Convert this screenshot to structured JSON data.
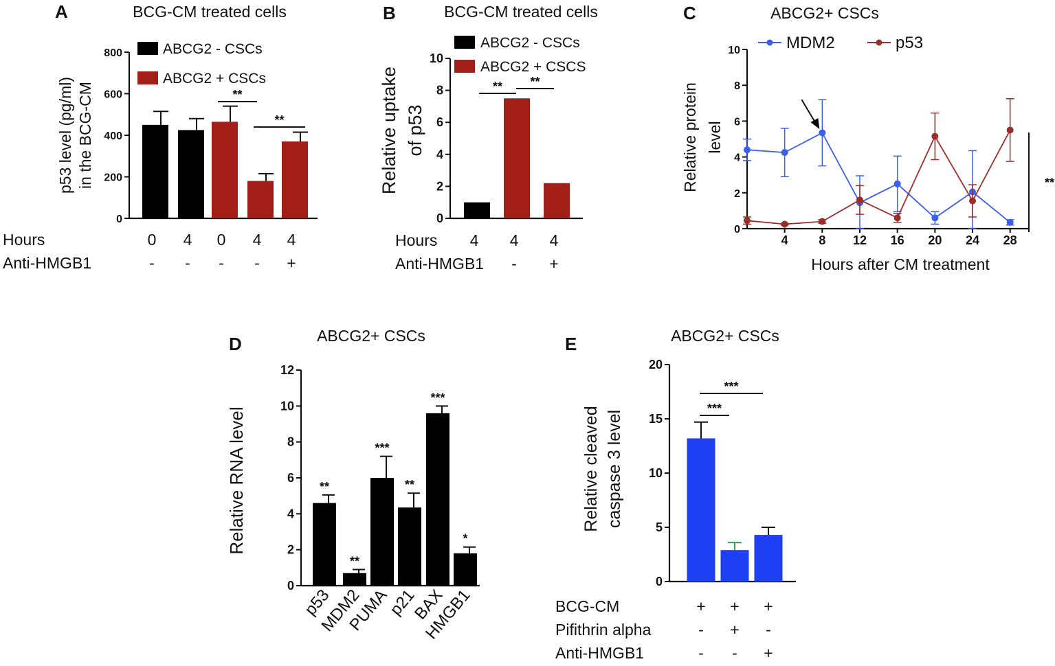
{
  "colors": {
    "black": "#000000",
    "red": "#a31e16",
    "blue": "#1e3ff2",
    "blueLine": "#3a5ef0",
    "green": "#2ea44f",
    "redLine": "#9a2f2a"
  },
  "chart_data": [
    {
      "id": "A",
      "panel_label": "A",
      "type": "bar",
      "title": "BCG-CM treated cells",
      "ylabel": [
        "p53 level (pg/ml)",
        "in the BCG-CM"
      ],
      "ylim": [
        0,
        800
      ],
      "yticks": [
        "0",
        "200",
        "400",
        "600",
        "800"
      ],
      "legend": [
        {
          "label": "ABCG2 - CSCs",
          "color": "black"
        },
        {
          "label": "ABCG2 +  CSCs",
          "color": "red"
        }
      ],
      "bars": [
        {
          "value": 450,
          "err": 65,
          "color": "black"
        },
        {
          "value": 425,
          "err": 55,
          "color": "black"
        },
        {
          "value": 465,
          "err": 75,
          "color": "red"
        },
        {
          "value": 180,
          "err": 35,
          "color": "red"
        },
        {
          "value": 370,
          "err": 45,
          "color": "red"
        }
      ],
      "rows": [
        {
          "label": "Hours",
          "values": [
            "0",
            "4",
            "0",
            "4",
            "4"
          ]
        },
        {
          "label": "Anti-HMGB1",
          "values": [
            "-",
            "-",
            "-",
            "-",
            "+"
          ]
        }
      ],
      "significance": [
        {
          "from": 2,
          "to": 3,
          "label": "**"
        },
        {
          "from": 3,
          "to": 4,
          "label": "**"
        }
      ]
    },
    {
      "id": "B",
      "panel_label": "B",
      "type": "bar",
      "title": "BCG-CM treated cells",
      "ylabel": [
        "Relative uptake",
        "of p53"
      ],
      "ylim": [
        0,
        10
      ],
      "yticks": [
        "0",
        "2",
        "4",
        "6",
        "8",
        "10"
      ],
      "legend": [
        {
          "label": "ABCG2 - CSCs",
          "color": "black"
        },
        {
          "label": "ABCG2 +  CSCS",
          "color": "red"
        }
      ],
      "bars": [
        {
          "value": 1.0,
          "err": 0,
          "color": "black"
        },
        {
          "value": 7.5,
          "err": 0,
          "color": "red"
        },
        {
          "value": 2.2,
          "err": 0,
          "color": "red"
        }
      ],
      "rows": [
        {
          "label": "Hours",
          "values": [
            "4",
            "4",
            "4"
          ]
        },
        {
          "label": "Anti-HMGB1",
          "values": [
            "-",
            "",
            "+"
          ]
        }
      ],
      "significance": [
        {
          "from": 0,
          "to": 1,
          "label": "**"
        },
        {
          "from": 1,
          "to": 2,
          "label": "**"
        }
      ]
    },
    {
      "id": "C",
      "panel_label": "C",
      "type": "line",
      "title": "ABCG2+ CSCs",
      "ylabel": [
        "Relative protein",
        "level"
      ],
      "xlabel": "Hours after CM treatment",
      "xlim": [
        0,
        30
      ],
      "ylim": [
        0,
        10
      ],
      "xticks": [
        "4",
        "8",
        "12",
        "16",
        "20",
        "24",
        "28"
      ],
      "yticks": [
        "0",
        "2",
        "4",
        "6",
        "8",
        "10"
      ],
      "x": [
        0,
        4,
        8,
        12,
        16,
        20,
        24,
        28
      ],
      "series": [
        {
          "name": "MDM2",
          "color": "blueLine",
          "values": [
            4.4,
            4.25,
            5.35,
            1.45,
            2.5,
            0.6,
            2.05,
            0.35
          ],
          "err": [
            0.6,
            1.35,
            1.85,
            1.5,
            1.55,
            0.35,
            2.3,
            0.15
          ]
        },
        {
          "name": "p53",
          "color": "redLine",
          "values": [
            0.45,
            0.25,
            0.4,
            1.6,
            0.6,
            5.15,
            1.55,
            5.5
          ],
          "err": [
            0.2,
            0.05,
            0.1,
            0.8,
            0.25,
            1.3,
            0.9,
            1.75
          ]
        }
      ],
      "annotation_arrow_x": 8,
      "significance_label": "**"
    },
    {
      "id": "D",
      "panel_label": "D",
      "type": "bar",
      "title": "ABCG2+ CSCs",
      "ylabel": [
        "Relative RNA level"
      ],
      "ylim": [
        0,
        12
      ],
      "yticks": [
        "0",
        "2",
        "4",
        "6",
        "8",
        "10",
        "12"
      ],
      "categories": [
        "p53",
        "MDM2",
        "PUMA",
        "p21",
        "BAX",
        "HMGB1"
      ],
      "bars": [
        {
          "value": 4.6,
          "err": 0.45,
          "color": "black",
          "sig": "**"
        },
        {
          "value": 0.7,
          "err": 0.2,
          "color": "black",
          "sig": "**"
        },
        {
          "value": 6.0,
          "err": 1.2,
          "color": "black",
          "sig": "***"
        },
        {
          "value": 4.35,
          "err": 0.8,
          "color": "black",
          "sig": "**"
        },
        {
          "value": 9.6,
          "err": 0.4,
          "color": "black",
          "sig": "***"
        },
        {
          "value": 1.8,
          "err": 0.35,
          "color": "black",
          "sig": "*"
        }
      ]
    },
    {
      "id": "E",
      "panel_label": "E",
      "type": "bar",
      "title": "ABCG2+ CSCs",
      "ylabel": [
        "Relative cleaved",
        "caspase 3 level"
      ],
      "ylim": [
        0,
        20
      ],
      "yticks": [
        "0",
        "5",
        "10",
        "15",
        "20"
      ],
      "bars": [
        {
          "value": 13.2,
          "err": 1.5,
          "color": "blue"
        },
        {
          "value": 2.9,
          "err": 0.7,
          "color": "blue",
          "errColor": "green"
        },
        {
          "value": 4.3,
          "err": 0.7,
          "color": "blue"
        }
      ],
      "rows": [
        {
          "label": "BCG-CM",
          "values": [
            "+",
            "+",
            "+"
          ]
        },
        {
          "label": "Pifithrin   alpha",
          "values": [
            "-",
            "+",
            "-"
          ]
        },
        {
          "label": "Anti-HMGB1",
          "values": [
            "-",
            "-",
            "+"
          ]
        }
      ],
      "significance": [
        {
          "from": 0,
          "to": 1,
          "label": "***"
        },
        {
          "from": 0,
          "to": 2,
          "label": "***"
        }
      ]
    }
  ]
}
